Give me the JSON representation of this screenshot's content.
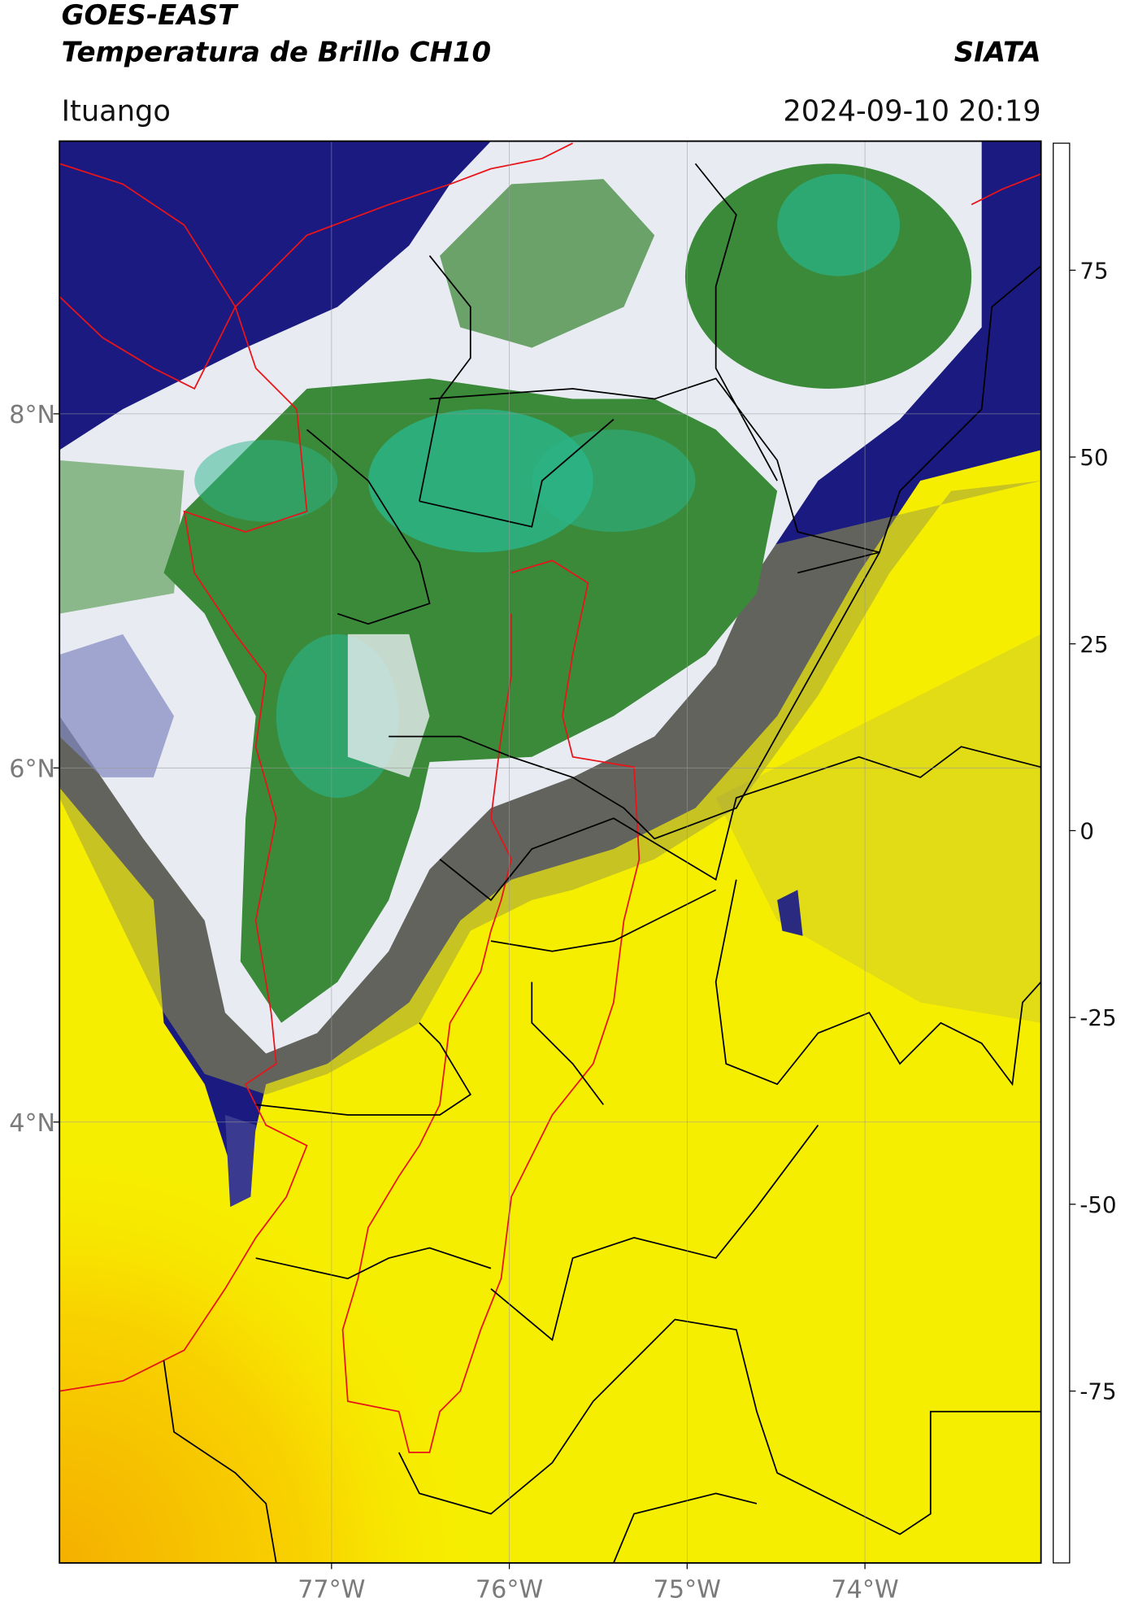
{
  "header": {
    "title": "GOES-EAST",
    "subtitle": "Temperatura de Brillo CH10",
    "org": "SIATA",
    "location": "Ituango",
    "datetime": "2024-09-10 20:19"
  },
  "map": {
    "xlim": [
      -78.53,
      -73.01
    ],
    "ylim": [
      1.51,
      9.54
    ],
    "xticks": [
      {
        "value": -77,
        "label": "77°W"
      },
      {
        "value": -76,
        "label": "76°W"
      },
      {
        "value": -75,
        "label": "75°W"
      },
      {
        "value": -74,
        "label": "74°W"
      }
    ],
    "yticks": [
      {
        "value": 8,
        "label": "8°N"
      },
      {
        "value": 6,
        "label": "6°N"
      },
      {
        "value": 4,
        "label": "4°N"
      }
    ],
    "grid": true
  },
  "colorbar": {
    "clim": [
      -98,
      92
    ],
    "ticks": [
      75,
      50,
      25,
      0,
      -25,
      -50,
      -75
    ],
    "stops": [
      {
        "value": -98,
        "color": "#ffffff"
      },
      {
        "value": -95.5,
        "color": "#ffffff"
      },
      {
        "value": -95.5,
        "color": "#00e8e0"
      },
      {
        "value": -82,
        "color": "#20b890"
      },
      {
        "value": -70,
        "color": "#3a8a3a"
      },
      {
        "value": -63,
        "color": "#3a8a3a"
      },
      {
        "value": -55,
        "color": "#c8dcc8"
      },
      {
        "value": -50,
        "color": "#f4f4f4"
      },
      {
        "value": -45,
        "color": "#9aa0d0"
      },
      {
        "value": -35,
        "color": "#4040a0"
      },
      {
        "value": -28,
        "color": "#101070"
      },
      {
        "value": -25,
        "color": "#303048"
      },
      {
        "value": -22,
        "color": "#8a8a40"
      },
      {
        "value": -15,
        "color": "#d0d020"
      },
      {
        "value": -12,
        "color": "#ffff00"
      },
      {
        "value": -2,
        "color": "#ffa500"
      },
      {
        "value": 5,
        "color": "#ff4000"
      },
      {
        "value": 8.5,
        "color": "#ff0000"
      },
      {
        "value": 8.5,
        "color": "#000000"
      },
      {
        "value": 92,
        "color": "#000000"
      }
    ]
  }
}
